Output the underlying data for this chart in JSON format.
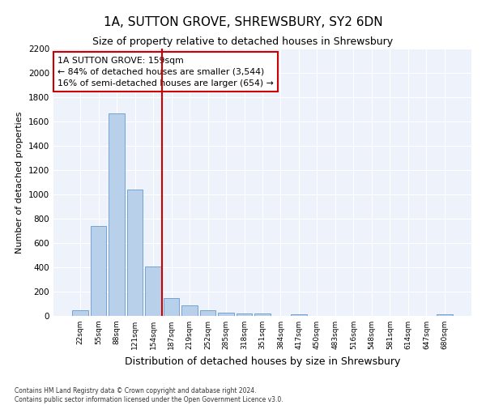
{
  "title": "1A, SUTTON GROVE, SHREWSBURY, SY2 6DN",
  "subtitle": "Size of property relative to detached houses in Shrewsbury",
  "xlabel": "Distribution of detached houses by size in Shrewsbury",
  "ylabel": "Number of detached properties",
  "bar_labels": [
    "22sqm",
    "55sqm",
    "88sqm",
    "121sqm",
    "154sqm",
    "187sqm",
    "219sqm",
    "252sqm",
    "285sqm",
    "318sqm",
    "351sqm",
    "384sqm",
    "417sqm",
    "450sqm",
    "483sqm",
    "516sqm",
    "548sqm",
    "581sqm",
    "614sqm",
    "647sqm",
    "680sqm"
  ],
  "bar_values": [
    50,
    740,
    1670,
    1040,
    410,
    150,
    85,
    45,
    30,
    20,
    20,
    0,
    15,
    0,
    0,
    0,
    0,
    0,
    0,
    0,
    15
  ],
  "bar_color": "#b8d0ea",
  "bar_edge_color": "#6699cc",
  "property_line_x": 4.5,
  "property_line_label": "1A SUTTON GROVE: 159sqm",
  "annotation_line1": "← 84% of detached houses are smaller (3,544)",
  "annotation_line2": "16% of semi-detached houses are larger (654) →",
  "annotation_box_color": "#cc0000",
  "ylim": [
    0,
    2200
  ],
  "yticks": [
    0,
    200,
    400,
    600,
    800,
    1000,
    1200,
    1400,
    1600,
    1800,
    2000,
    2200
  ],
  "footnote1": "Contains HM Land Registry data © Crown copyright and database right 2024.",
  "footnote2": "Contains public sector information licensed under the Open Government Licence v3.0.",
  "background_color": "#eef2fa",
  "title_fontsize": 11,
  "subtitle_fontsize": 9,
  "ylabel_fontsize": 8,
  "xlabel_fontsize": 9
}
